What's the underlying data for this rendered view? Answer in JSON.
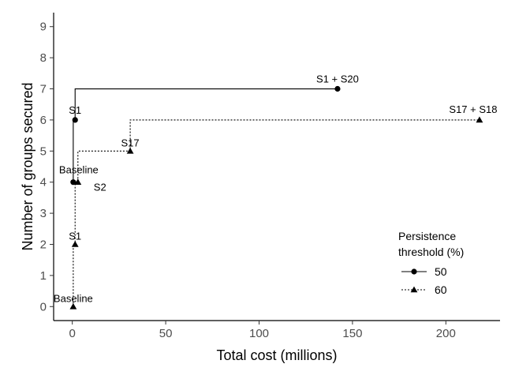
{
  "chart_data": {
    "type": "line",
    "xlabel": "Total cost (millions)",
    "ylabel": "Number of groups secured",
    "xlim": [
      -10,
      229
    ],
    "ylim": [
      -0.45,
      9.45
    ],
    "xticks": [
      0,
      50,
      100,
      150,
      200
    ],
    "yticks": [
      0,
      1,
      2,
      3,
      4,
      5,
      6,
      7,
      8,
      9
    ],
    "grid": false,
    "legend": {
      "title_lines": [
        "Persistence",
        "threshold (%)"
      ],
      "position": "right",
      "entries": [
        "50",
        "60"
      ]
    },
    "series": [
      {
        "name": "50",
        "marker": "circle",
        "line_style": "solid",
        "points": [
          {
            "x": 0.5,
            "y": 4,
            "label": "Baseline"
          },
          {
            "x": 1.5,
            "y": 6,
            "label": "S1"
          },
          {
            "x": 142,
            "y": 7,
            "label": "S1 + S20"
          }
        ]
      },
      {
        "name": "60",
        "marker": "triangle",
        "line_style": "dotted",
        "points": [
          {
            "x": 0.5,
            "y": 0,
            "label": "Baseline"
          },
          {
            "x": 1.5,
            "y": 2,
            "label": "S1"
          },
          {
            "x": 3,
            "y": 4,
            "label": "S2"
          },
          {
            "x": 31,
            "y": 5,
            "label": "S17"
          },
          {
            "x": 218,
            "y": 6,
            "label": "S17 + S18"
          }
        ]
      }
    ]
  }
}
